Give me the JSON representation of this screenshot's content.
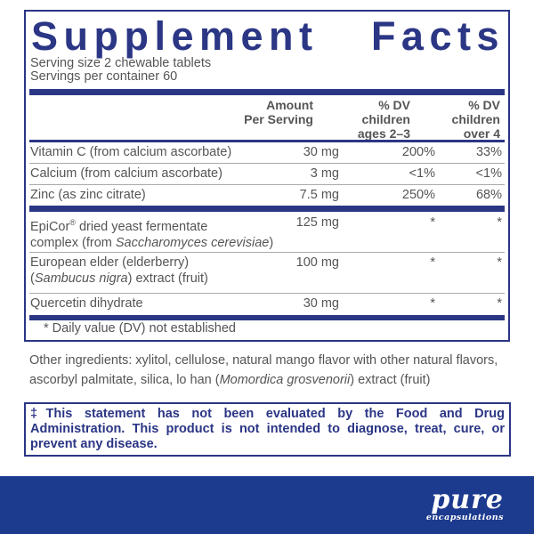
{
  "title_words": [
    "Supplement",
    "Facts"
  ],
  "serving_size": "Serving size  2 chewable tablets",
  "servings_per_container": "Servings per container  60",
  "headers": {
    "amount": [
      "Amount",
      "Per Serving"
    ],
    "dv1": [
      "% DV",
      "children",
      "ages 2–3"
    ],
    "dv2": [
      "% DV",
      "children",
      "over 4"
    ]
  },
  "rows": [
    {
      "name": "Vitamin C (from calcium ascorbate)",
      "amount": "30 mg",
      "dv1": "200%",
      "dv2": "33%"
    },
    {
      "name": "Calcium (from calcium ascorbate)",
      "amount": "3 mg",
      "dv1": "<1%",
      "dv2": "<1%"
    },
    {
      "name": "Zinc (as zinc citrate)",
      "amount": "7.5 mg",
      "dv1": "250%",
      "dv2": "68%"
    },
    {
      "name_a": "EpiCor",
      "name_sup": "®",
      "name_b": " dried yeast fermentate",
      "name_c": "complex (from ",
      "name_i": "Saccharomyces cerevisiae",
      "name_d": ")",
      "amount": "125 mg",
      "dv1": "*",
      "dv2": "*"
    },
    {
      "name_a": "European elder (elderberry)",
      "name_c": "(",
      "name_i": "Sambucus nigra",
      "name_d": ") extract (fruit)",
      "amount": "100 mg",
      "dv1": "*",
      "dv2": "*"
    },
    {
      "name": "Quercetin dihydrate",
      "amount": "30 mg",
      "dv1": "*",
      "dv2": "*"
    }
  ],
  "footnote": "* Daily value (DV) not established",
  "other_ingredients": {
    "a": "Other ingredients: xylitol, cellulose, natural mango flavor with other natural flavors, ascorbyl palmitate, silica, lo han (",
    "i": "Momordica grosvenorii",
    "b": ") extract (fruit)"
  },
  "disclaimer": "‡This statement has not been evaluated by the Food and Drug Administration. This product is not intended to diagnose, treat, cure, or prevent any disease.",
  "brand": {
    "name": "pure",
    "sub": "encapsulations"
  },
  "colors": {
    "label_blue": "#2b3685",
    "footer_blue": "#1c3a8e",
    "text": "#555555"
  }
}
